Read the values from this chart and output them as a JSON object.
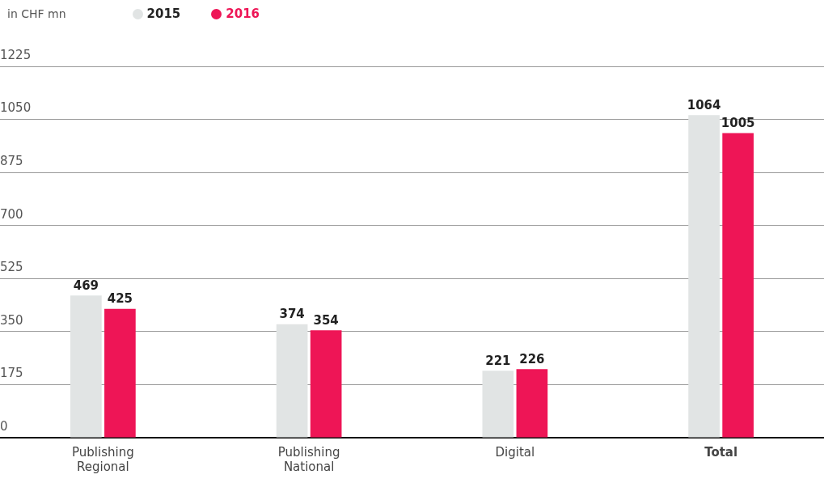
{
  "chart_data": {
    "type": "bar",
    "ylabel": "in CHF mn",
    "categories": [
      "Publishing Regional",
      "Publishing National",
      "Digital",
      "Total"
    ],
    "series": [
      {
        "name": "2015",
        "color": "#e1e4e4",
        "values": [
          469,
          374,
          221,
          1064
        ]
      },
      {
        "name": "2016",
        "color": "#ee1556",
        "values": [
          425,
          354,
          226,
          1005
        ]
      }
    ],
    "ylim": [
      0,
      1225
    ],
    "yticks": [
      0,
      175,
      350,
      525,
      700,
      875,
      1050,
      1225
    ],
    "grid": "y",
    "legend": "top left",
    "data_labels": true
  }
}
